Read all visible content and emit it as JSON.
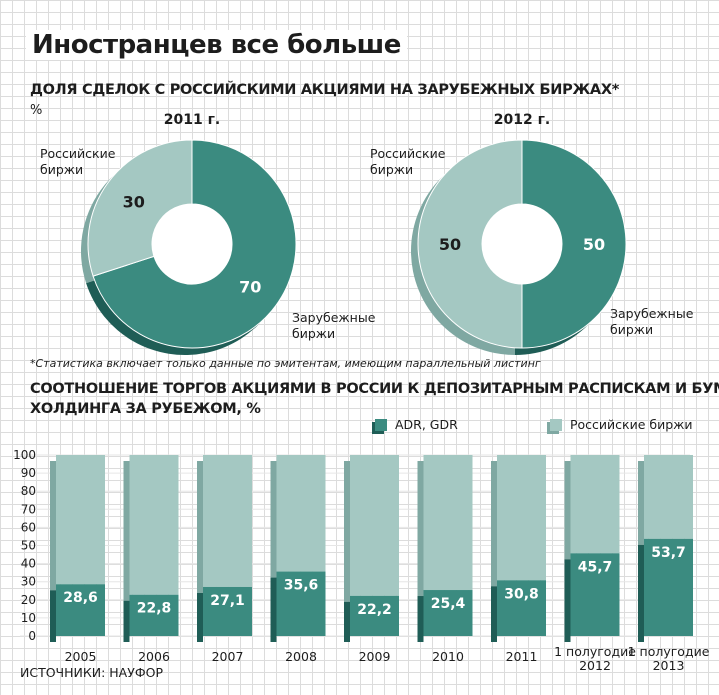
{
  "title": "Иностранцев все больше",
  "pie_section": {
    "header": "ДОЛЯ СДЕЛОК С РОССИЙСКИМИ АКЦИЯМИ НА ЗАРУБЕЖНЫХ БИРЖАХ*",
    "unit": "%",
    "footnote": "*Статистика включает только данные по эмитентам, имеющим параллельный листинг"
  },
  "bar_section": {
    "header_line1": "СООТНОШЕНИЕ ТОРГОВ АКЦИЯМИ В РОССИИ К ДЕПОЗИТАРНЫМ РАСПИСКАМ И БУМАГАМ",
    "header_line2": "ХОЛДИНГА ЗА РУБЕЖОМ, %",
    "legend": [
      "ADR, GDR",
      "Российские биржи"
    ],
    "sources": "ИСТОЧНИКИ: НАУФОР"
  },
  "colors": {
    "dark": "#3b8b80",
    "light": "#a4c8c2",
    "dark_side": "#1f5d56",
    "light_side": "#7fa8a2"
  },
  "chart_data": [
    {
      "type": "pie",
      "title": "2011 г.",
      "labels": [
        "Российские биржи",
        "Зарубежные биржи"
      ],
      "values": [
        30,
        70
      ]
    },
    {
      "type": "pie",
      "title": "2012 г.",
      "labels": [
        "Российские биржи",
        "Зарубежные биржи"
      ],
      "values": [
        50,
        50
      ]
    },
    {
      "type": "bar",
      "stacked": true,
      "categories": [
        "2005",
        "2006",
        "2007",
        "2008",
        "2009",
        "2010",
        "2011",
        "1 полугодие 2012",
        "1 полугодие 2013"
      ],
      "series": [
        {
          "name": "ADR, GDR",
          "values": [
            28.6,
            22.8,
            27.1,
            35.6,
            22.2,
            25.4,
            30.8,
            45.7,
            53.7
          ]
        },
        {
          "name": "Российские биржи",
          "values": [
            71.4,
            77.2,
            72.9,
            64.4,
            77.8,
            74.6,
            69.2,
            54.3,
            46.3
          ]
        }
      ],
      "value_labels": [
        "28,6",
        "22,8",
        "27,1",
        "35,6",
        "22,2",
        "25,4",
        "30,8",
        "45,7",
        "53,7"
      ],
      "category_labels": [
        [
          "2005"
        ],
        [
          "2006"
        ],
        [
          "2007"
        ],
        [
          "2008"
        ],
        [
          "2009"
        ],
        [
          "2010"
        ],
        [
          "2011"
        ],
        [
          "1 полугодие",
          "2012"
        ],
        [
          "1 полугодие",
          "2013"
        ]
      ],
      "ylim": [
        0,
        100
      ],
      "yticks": [
        0,
        10,
        20,
        30,
        40,
        50,
        60,
        70,
        80,
        90,
        100
      ]
    }
  ]
}
